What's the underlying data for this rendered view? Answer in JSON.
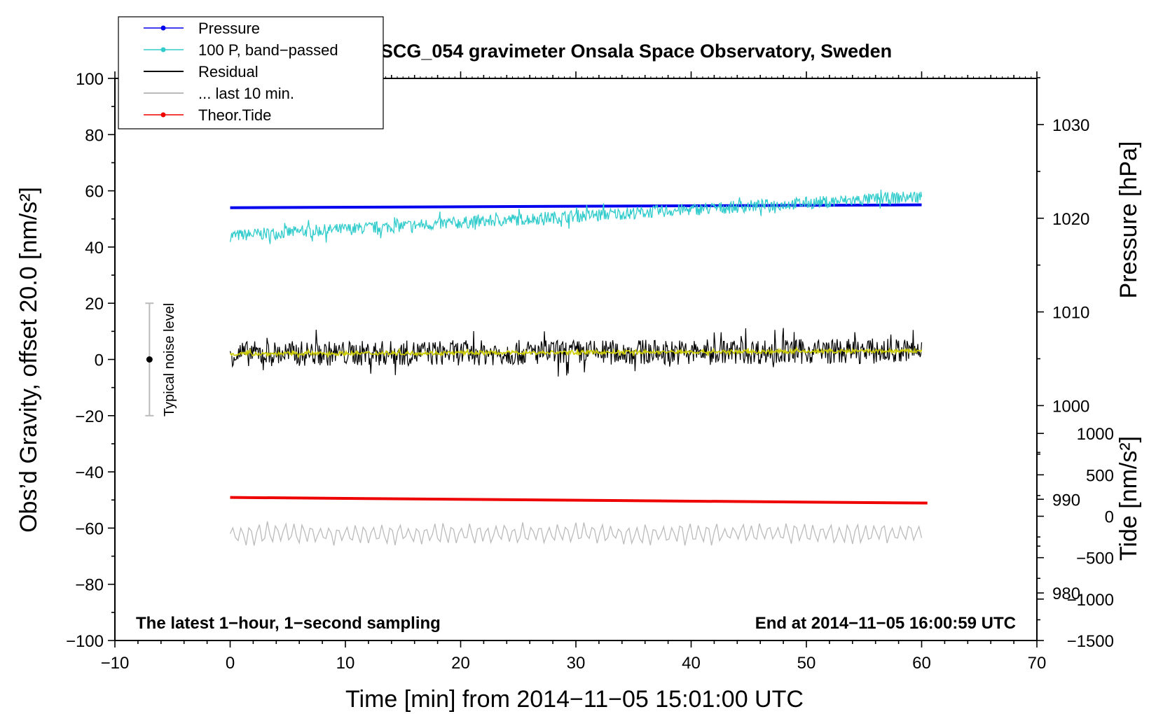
{
  "chart_data": {
    "type": "line",
    "title": "SCG_054 gravimeter Onsala Space Observatory, Sweden",
    "xlabel": "Time [min] from 2014−11−05 15:01:00 UTC",
    "ylabel_left": "Obs’d Gravity, offset 20.0 [nm/s²]",
    "ylabel_right_top": "Pressure [hPa]",
    "ylabel_right_bottom": "Tide [nm/s²]",
    "annotation_left": "The latest 1−hour, 1−second sampling",
    "annotation_right": "End at 2014−11−05 16:00:59 UTC",
    "noise_label": "Typical noise level",
    "x_range": [
      -10,
      70
    ],
    "y_range": [
      -100,
      100
    ],
    "pressure_axis_range": [
      975,
      1035
    ],
    "tide_axis_range": [
      -1500,
      1500
    ],
    "x_ticks": [
      "−10",
      "0",
      "10",
      "20",
      "30",
      "40",
      "50",
      "60",
      "70"
    ],
    "y_ticks": [
      "100",
      "80",
      "60",
      "40",
      "20",
      "0",
      "−20",
      "−40",
      "−60",
      "−80",
      "−100"
    ],
    "pressure_ticks": [
      "1030",
      "1020",
      "1010",
      "1000",
      "990",
      "980"
    ],
    "tide_ticks": [
      "1000",
      "500",
      "0",
      "−500",
      "−1000",
      "−1500"
    ],
    "noise_bar": {
      "x": -7,
      "y_center": 0,
      "y_low": -20,
      "y_high": 20
    },
    "legend": [
      {
        "label": "Pressure",
        "color": "#0000ee",
        "marker": true
      },
      {
        "label": "100 P, band−passed",
        "color": "#33cccc",
        "marker": true
      },
      {
        "label": "Residual",
        "color": "#000000",
        "marker": false
      },
      {
        "label": "... last 10 min.",
        "color": "#bbbbbb",
        "marker": false
      },
      {
        "label": "Theor.Tide",
        "color": "#ee0000",
        "marker": true
      }
    ],
    "series": [
      {
        "name": "Pressure",
        "color": "#0000ee",
        "x": [
          0,
          60
        ],
        "y": [
          54,
          55
        ],
        "style": "thick"
      },
      {
        "name": "100 P, band−passed",
        "color": "#33cccc",
        "x": [
          0,
          60
        ],
        "y": [
          44,
          58
        ],
        "noise_amplitude": 2.2,
        "style": "noisy"
      },
      {
        "name": "Residual",
        "color": "#000000",
        "x": [
          0,
          60
        ],
        "y": [
          2,
          3
        ],
        "noise_amplitude": 4.5,
        "style": "noisy"
      },
      {
        "name": "Residual smoothed",
        "color": "#cccc00",
        "x": [
          0,
          60
        ],
        "y": [
          2,
          3
        ],
        "noise_amplitude": 0.7,
        "style": "noisy"
      },
      {
        "name": "Theor.Tide",
        "color": "#ee0000",
        "x": [
          0,
          60.5
        ],
        "y": [
          -49.1,
          -51.1
        ],
        "style": "thick"
      },
      {
        "name": "... last 10 min.",
        "color": "#bbbbbb",
        "x": [
          0,
          60
        ],
        "y": [
          -62,
          -62
        ],
        "noise_amplitude": 4.5,
        "style": "oscillating"
      }
    ]
  }
}
